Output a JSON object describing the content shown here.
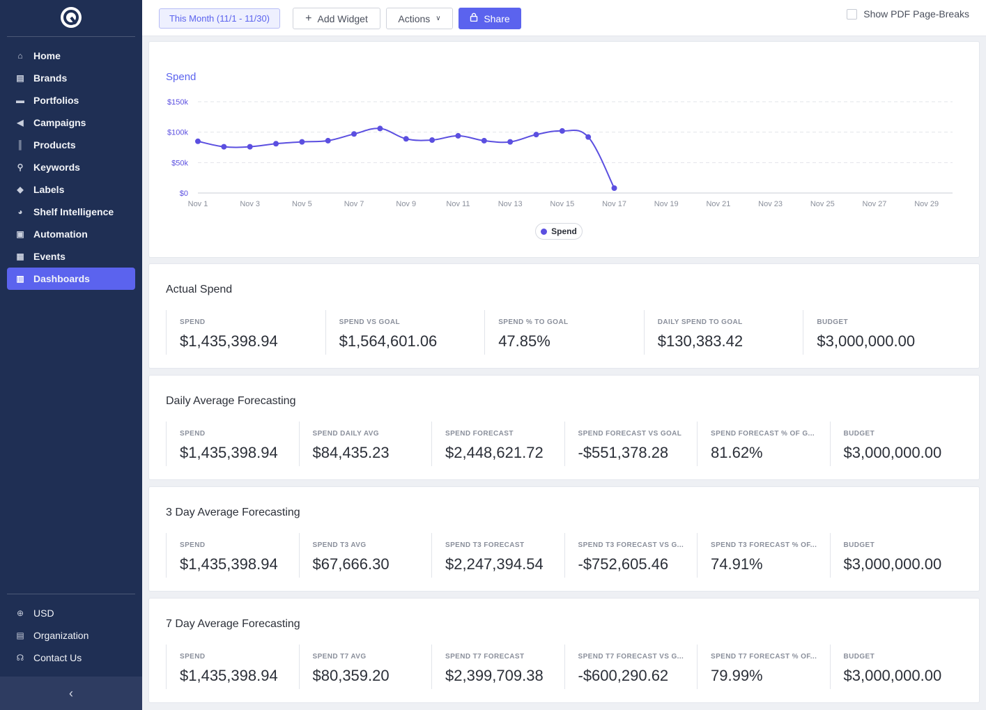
{
  "sidebar": {
    "items": [
      {
        "label": "Home",
        "icon": "home-icon",
        "glyph": "⌂"
      },
      {
        "label": "Brands",
        "icon": "store-icon",
        "glyph": "▤"
      },
      {
        "label": "Portfolios",
        "icon": "folder-icon",
        "glyph": "▬"
      },
      {
        "label": "Campaigns",
        "icon": "megaphone-icon",
        "glyph": "◀"
      },
      {
        "label": "Products",
        "icon": "barcode-icon",
        "glyph": "║"
      },
      {
        "label": "Keywords",
        "icon": "search-icon",
        "glyph": "⚲"
      },
      {
        "label": "Labels",
        "icon": "tag-icon",
        "glyph": "◆"
      },
      {
        "label": "Shelf Intelligence",
        "icon": "pie-chart-icon",
        "glyph": "◕"
      },
      {
        "label": "Automation",
        "icon": "robot-icon",
        "glyph": "▣"
      },
      {
        "label": "Events",
        "icon": "calendar-icon",
        "glyph": "▦"
      },
      {
        "label": "Dashboards",
        "icon": "dashboard-icon",
        "glyph": "▥",
        "active": true
      }
    ],
    "bottom": [
      {
        "label": "USD",
        "icon": "globe-icon",
        "glyph": "⊕"
      },
      {
        "label": "Organization",
        "icon": "building-icon",
        "glyph": "▤"
      },
      {
        "label": "Contact Us",
        "icon": "headset-icon",
        "glyph": "☊"
      }
    ],
    "collapse_glyph": "‹"
  },
  "toolbar": {
    "date_range": "This Month (11/1 - 11/30)",
    "add_widget": "Add Widget",
    "actions": "Actions",
    "share": "Share",
    "pdf_breaks": "Show PDF Page-Breaks"
  },
  "chart_data": {
    "type": "line",
    "title": "Spend",
    "x": [
      "Nov 1",
      "Nov 2",
      "Nov 3",
      "Nov 4",
      "Nov 5",
      "Nov 6",
      "Nov 7",
      "Nov 8",
      "Nov 9",
      "Nov 10",
      "Nov 11",
      "Nov 12",
      "Nov 13",
      "Nov 14",
      "Nov 15",
      "Nov 16",
      "Nov 17"
    ],
    "x_ticks": [
      "Nov 1",
      "Nov 3",
      "Nov 5",
      "Nov 7",
      "Nov 9",
      "Nov 11",
      "Nov 13",
      "Nov 15",
      "Nov 17",
      "Nov 19",
      "Nov 21",
      "Nov 23",
      "Nov 25",
      "Nov 27",
      "Nov 29"
    ],
    "x_range_days": [
      1,
      30
    ],
    "y_ticks": [
      "$0",
      "$50k",
      "$100k",
      "$150k"
    ],
    "ylim": [
      0,
      150000
    ],
    "series": [
      {
        "name": "Spend",
        "color": "#5b4fe0",
        "values": [
          85000,
          76000,
          76000,
          81000,
          84000,
          86000,
          97000,
          106000,
          89000,
          87000,
          94000,
          86000,
          84000,
          96000,
          102000,
          92000,
          8000
        ]
      }
    ],
    "legend_position": "bottom-center",
    "grid": true
  },
  "panels": [
    {
      "title": "Actual Spend",
      "metrics": [
        {
          "label": "SPEND",
          "value": "$1,435,398.94"
        },
        {
          "label": "SPEND VS GOAL",
          "value": "$1,564,601.06"
        },
        {
          "label": "SPEND % TO GOAL",
          "value": "47.85%"
        },
        {
          "label": "DAILY SPEND TO GOAL",
          "value": "$130,383.42"
        },
        {
          "label": "BUDGET",
          "value": "$3,000,000.00"
        }
      ]
    },
    {
      "title": "Daily Average Forecasting",
      "metrics": [
        {
          "label": "SPEND",
          "value": "$1,435,398.94"
        },
        {
          "label": "SPEND DAILY AVG",
          "value": "$84,435.23"
        },
        {
          "label": "SPEND FORECAST",
          "value": "$2,448,621.72"
        },
        {
          "label": "SPEND FORECAST VS GOAL",
          "value": "-$551,378.28"
        },
        {
          "label": "SPEND FORECAST % OF G...",
          "value": "81.62%"
        },
        {
          "label": "BUDGET",
          "value": "$3,000,000.00"
        }
      ]
    },
    {
      "title": "3 Day Average Forecasting",
      "metrics": [
        {
          "label": "SPEND",
          "value": "$1,435,398.94"
        },
        {
          "label": "SPEND T3 AVG",
          "value": "$67,666.30"
        },
        {
          "label": "SPEND T3 FORECAST",
          "value": "$2,247,394.54"
        },
        {
          "label": "SPEND T3 FORECAST VS G...",
          "value": "-$752,605.46"
        },
        {
          "label": "SPEND T3 FORECAST % OF...",
          "value": "74.91%"
        },
        {
          "label": "BUDGET",
          "value": "$3,000,000.00"
        }
      ]
    },
    {
      "title": "7 Day Average Forecasting",
      "metrics": [
        {
          "label": "SPEND",
          "value": "$1,435,398.94"
        },
        {
          "label": "SPEND T7 AVG",
          "value": "$80,359.20"
        },
        {
          "label": "SPEND T7 FORECAST",
          "value": "$2,399,709.38"
        },
        {
          "label": "SPEND T7 FORECAST VS G...",
          "value": "-$600,290.62"
        },
        {
          "label": "SPEND T7 FORECAST % OF...",
          "value": "79.99%"
        },
        {
          "label": "BUDGET",
          "value": "$3,000,000.00"
        }
      ]
    }
  ]
}
